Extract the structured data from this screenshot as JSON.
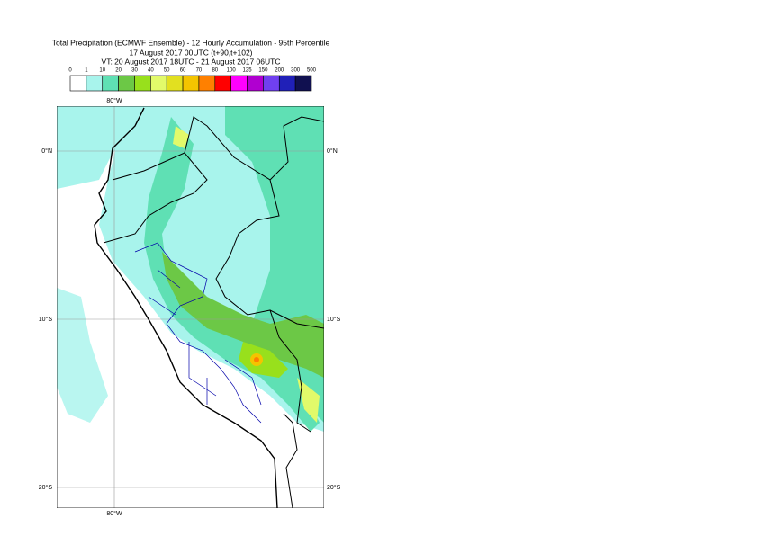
{
  "header": {
    "title": "Total Precipitation (ECMWF Ensemble) - 12 Hourly Accumulation - 95th Percentile",
    "base_time": "17 August 2017 00UTC (t+90,t+102)",
    "valid_time": "VT: 20 August 2017 18UTC - 21 August 2017 06UTC"
  },
  "colorbar": {
    "levels": [
      0,
      1,
      10,
      20,
      30,
      40,
      50,
      60,
      70,
      80,
      100,
      125,
      150,
      200,
      300,
      500
    ],
    "colors": [
      "#ffffff",
      "#a8f4ec",
      "#5fe0b4",
      "#6cc846",
      "#98e01c",
      "#e2fa6a",
      "#e2e020",
      "#f4c400",
      "#ff8000",
      "#ff0000",
      "#ff00ff",
      "#b000d0",
      "#7040f0",
      "#2020b8",
      "#101050"
    ]
  },
  "map": {
    "lon_labels": [
      "80°W",
      "80°W"
    ],
    "lat_labels": [
      "0°N",
      "0°N",
      "10°S",
      "10°S",
      "20°S",
      "20°S"
    ]
  }
}
